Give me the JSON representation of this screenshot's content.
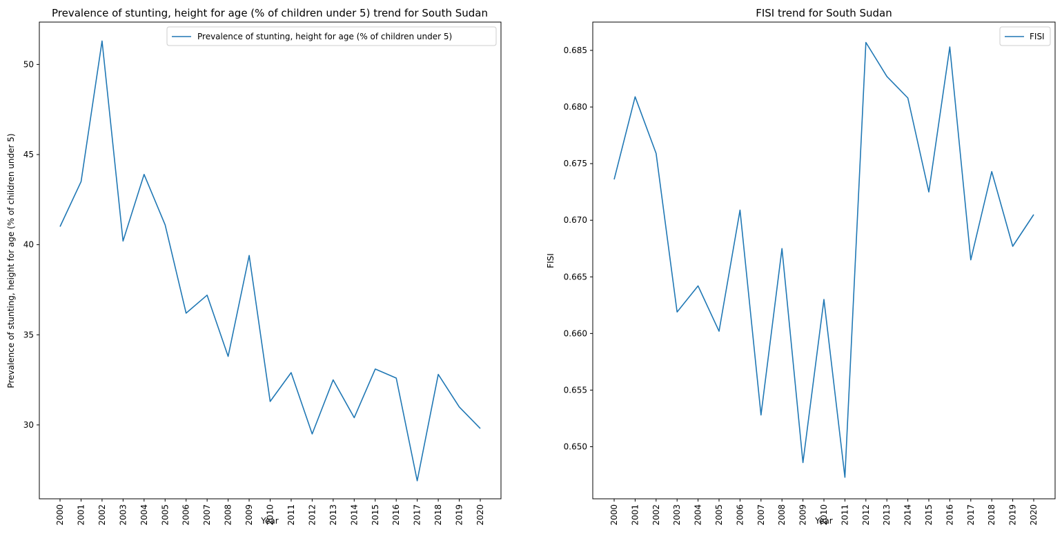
{
  "chart_data": [
    {
      "type": "line",
      "title": "Prevalence of stunting, height for age (% of children under 5) trend for South Sudan",
      "xlabel": "Year",
      "ylabel": "Prevalence of stunting, height for age (% of children under 5)",
      "legend_position": "top-right",
      "grid": false,
      "x": [
        "2000",
        "2001",
        "2002",
        "2003",
        "2004",
        "2005",
        "2006",
        "2007",
        "2008",
        "2009",
        "2010",
        "2011",
        "2012",
        "2013",
        "2014",
        "2015",
        "2016",
        "2017",
        "2018",
        "2019",
        "2020"
      ],
      "yticks": [
        30,
        35,
        40,
        45,
        50
      ],
      "ylim": [
        25.9,
        52.35
      ],
      "series": [
        {
          "name": "Prevalence of stunting, height for age (% of children under 5)",
          "color": "#1f77b4",
          "values": [
            41.0,
            43.5,
            51.3,
            40.2,
            43.9,
            41.1,
            36.2,
            37.2,
            33.8,
            39.4,
            31.3,
            32.9,
            29.5,
            32.5,
            30.4,
            33.1,
            32.6,
            26.9,
            32.8,
            31.0,
            29.8
          ]
        }
      ]
    },
    {
      "type": "line",
      "title": "FISI trend for South Sudan",
      "xlabel": "Year",
      "ylabel": "FISI",
      "legend_position": "top-right",
      "grid": false,
      "x": [
        "2000",
        "2001",
        "2002",
        "2003",
        "2004",
        "2005",
        "2006",
        "2007",
        "2008",
        "2009",
        "2010",
        "2011",
        "2012",
        "2013",
        "2014",
        "2015",
        "2016",
        "2017",
        "2018",
        "2019",
        "2020"
      ],
      "yticks": [
        0.65,
        0.655,
        0.66,
        0.665,
        0.67,
        0.675,
        0.68,
        0.685
      ],
      "ytick_labels": [
        "0.650",
        "0.655",
        "0.660",
        "0.665",
        "0.670",
        "0.675",
        "0.680",
        "0.685"
      ],
      "ylim": [
        0.6454,
        0.6875
      ],
      "series": [
        {
          "name": "FISI",
          "color": "#1f77b4",
          "values": [
            0.6736,
            0.6809,
            0.6759,
            0.6619,
            0.6642,
            0.6602,
            0.6709,
            0.6528,
            0.6675,
            0.6486,
            0.663,
            0.6473,
            0.6857,
            0.6827,
            0.6808,
            0.6725,
            0.6853,
            0.6665,
            0.6743,
            0.6677,
            0.6705
          ]
        }
      ]
    }
  ]
}
